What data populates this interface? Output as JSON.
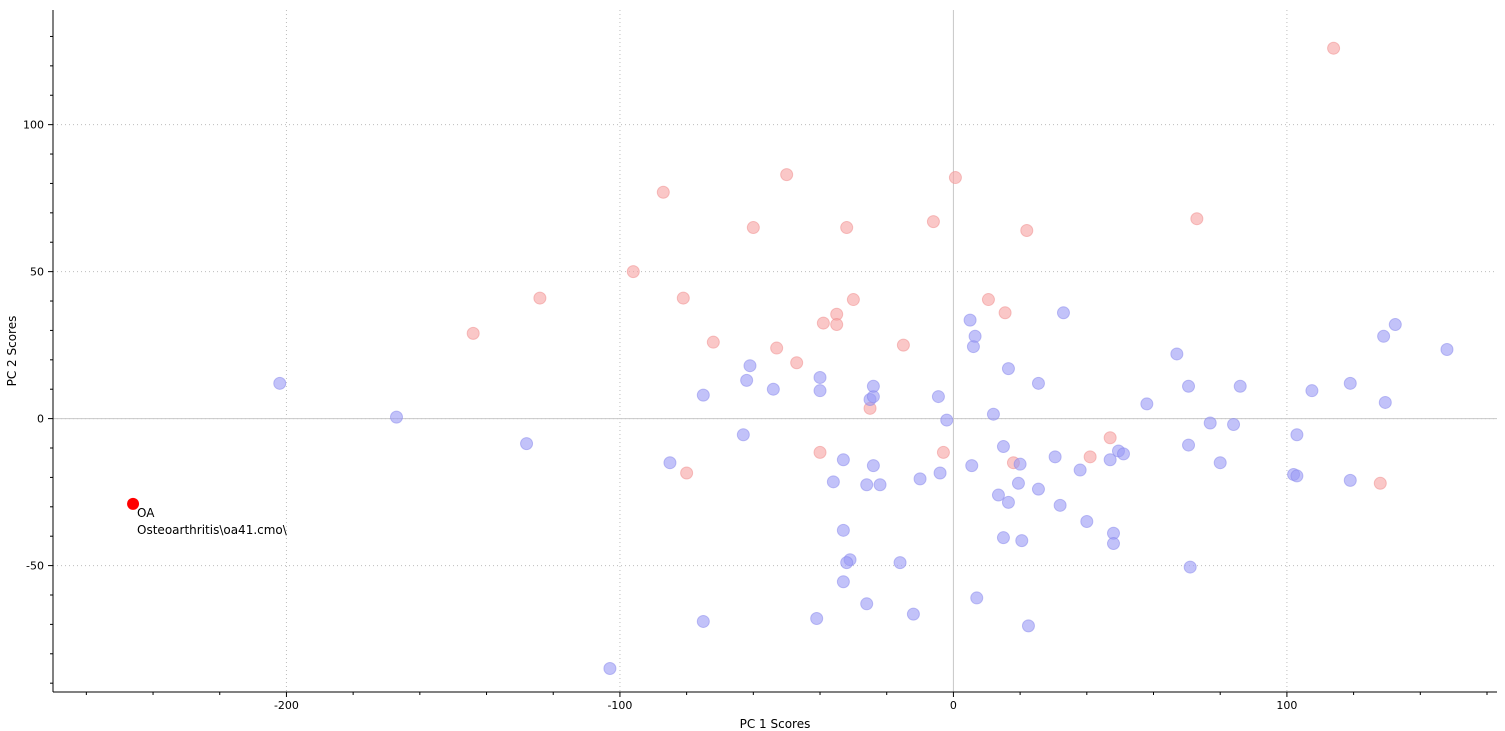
{
  "chart_data": {
    "type": "scatter",
    "xlabel": "PC 1 Scores",
    "ylabel": "PC 2 Scores",
    "xlim": [
      -270,
      163
    ],
    "ylim": [
      -93,
      139
    ],
    "x_ticks": [
      -200,
      -100,
      0,
      100
    ],
    "y_ticks": [
      -50,
      0,
      50,
      100
    ],
    "grid": true,
    "colors": {
      "series_a": "#f7a1a1",
      "series_b": "#9a9af5",
      "highlight": "#ff0000"
    },
    "series": [
      {
        "points": [
          [
            114,
            126
          ],
          [
            -50,
            83
          ],
          [
            0.6,
            82
          ],
          [
            -87,
            77
          ],
          [
            -6,
            67
          ],
          [
            73,
            68
          ],
          [
            -60,
            65
          ],
          [
            -32,
            65
          ],
          [
            22,
            64
          ],
          [
            -96,
            50
          ],
          [
            -124,
            41
          ],
          [
            -81,
            41
          ],
          [
            -30,
            40.5
          ],
          [
            10.5,
            40.5
          ],
          [
            -144,
            29
          ],
          [
            -35,
            35.5
          ],
          [
            15.5,
            36
          ],
          [
            -39,
            32.5
          ],
          [
            -35,
            32
          ],
          [
            -72,
            26
          ],
          [
            -53,
            24
          ],
          [
            -15,
            25
          ],
          [
            -47,
            19
          ],
          [
            -25,
            3.5
          ],
          [
            -40,
            -11.5
          ],
          [
            -3,
            -11.5
          ],
          [
            47,
            -6.5
          ],
          [
            -80,
            -18.5
          ],
          [
            18,
            -15
          ],
          [
            41,
            -13
          ],
          [
            128,
            -22
          ]
        ]
      },
      {
        "points": [
          [
            -202,
            12
          ],
          [
            -167,
            0.5
          ],
          [
            -128,
            -8.5
          ],
          [
            -103,
            -85
          ],
          [
            -75,
            8
          ],
          [
            -75,
            -69
          ],
          [
            -85,
            -15
          ],
          [
            -63,
            -5.5
          ],
          [
            -62,
            13
          ],
          [
            -61,
            18
          ],
          [
            -54,
            10
          ],
          [
            -40,
            14
          ],
          [
            -40,
            9.5
          ],
          [
            -41,
            -68
          ],
          [
            -36,
            -21.5
          ],
          [
            -33,
            -14
          ],
          [
            -33,
            -38
          ],
          [
            -33,
            -55.5
          ],
          [
            -31,
            -48
          ],
          [
            -32,
            -49
          ],
          [
            -26,
            -22.5
          ],
          [
            -26,
            -63
          ],
          [
            -25,
            6.5
          ],
          [
            -24,
            7.5
          ],
          [
            -24,
            11
          ],
          [
            -24,
            -16
          ],
          [
            -22,
            -22.5
          ],
          [
            -16,
            -49
          ],
          [
            -12,
            -66.5
          ],
          [
            -10,
            -20.5
          ],
          [
            -4.5,
            7.5
          ],
          [
            -4,
            -18.5
          ],
          [
            -2,
            -0.5
          ],
          [
            5,
            33.5
          ],
          [
            5.5,
            -16
          ],
          [
            6,
            24.5
          ],
          [
            6.5,
            28
          ],
          [
            7,
            -61
          ],
          [
            12,
            1.5
          ],
          [
            13.5,
            -26
          ],
          [
            15,
            -9.5
          ],
          [
            15,
            -40.5
          ],
          [
            16.5,
            -28.5
          ],
          [
            16.5,
            17
          ],
          [
            19.5,
            -22
          ],
          [
            20,
            -15.5
          ],
          [
            20.5,
            -41.5
          ],
          [
            22.5,
            -70.5
          ],
          [
            25.5,
            -24
          ],
          [
            25.5,
            12
          ],
          [
            30.5,
            -13
          ],
          [
            32,
            -29.5
          ],
          [
            33,
            36
          ],
          [
            38,
            -17.5
          ],
          [
            40,
            -35
          ],
          [
            47,
            -14
          ],
          [
            48,
            -39
          ],
          [
            48,
            -42.5
          ],
          [
            49.5,
            -11
          ],
          [
            51,
            -12
          ],
          [
            58,
            5
          ],
          [
            67,
            22
          ],
          [
            70.5,
            11
          ],
          [
            70.5,
            -9
          ],
          [
            71,
            -50.5
          ],
          [
            77,
            -1.5
          ],
          [
            80,
            -15
          ],
          [
            84,
            -2
          ],
          [
            86,
            11
          ],
          [
            102,
            -19
          ],
          [
            103,
            -19.5
          ],
          [
            103,
            -5.5
          ],
          [
            107.5,
            9.5
          ],
          [
            119,
            12
          ],
          [
            119,
            -21
          ],
          [
            129,
            28
          ],
          [
            129.5,
            5.5
          ],
          [
            132.5,
            32
          ],
          [
            148,
            23.5
          ]
        ]
      }
    ],
    "highlight": {
      "point": [
        -246,
        -29
      ],
      "label_lines": [
        "OA",
        "Osteoarthritis\\oa41.cmo\\"
      ]
    }
  }
}
